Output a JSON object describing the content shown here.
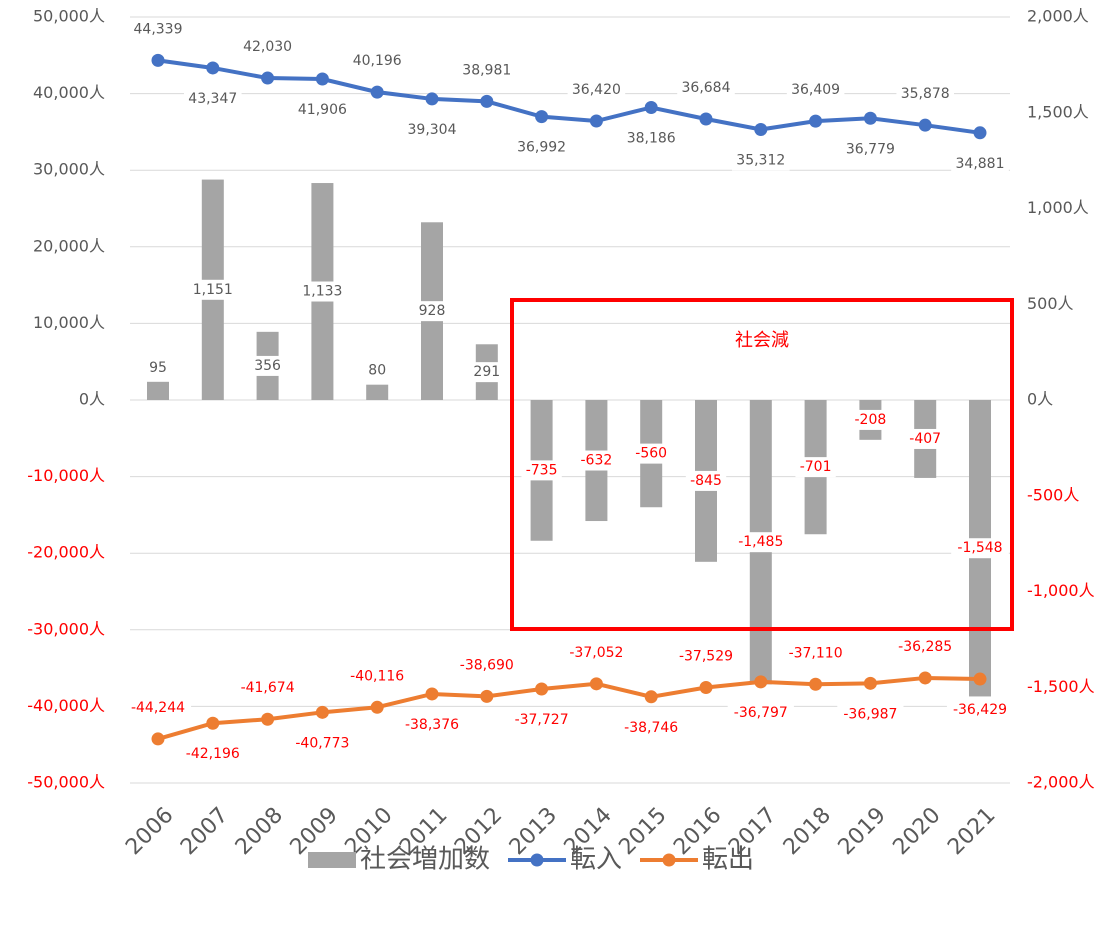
{
  "chart_data": {
    "type": "combo",
    "categories": [
      "2006",
      "2007",
      "2008",
      "2009",
      "2010",
      "2011",
      "2012",
      "2013",
      "2014",
      "2015",
      "2016",
      "2017",
      "2018",
      "2019",
      "2020",
      "2021"
    ],
    "ylim": [
      -50000,
      50000
    ],
    "yticks": [
      {
        "value": 50000,
        "label": "50,000人"
      },
      {
        "value": 40000,
        "label": "40,000人"
      },
      {
        "value": 30000,
        "label": "30,000人"
      },
      {
        "value": 20000,
        "label": "20,000人"
      },
      {
        "value": 10000,
        "label": "10,000人"
      },
      {
        "value": 0,
        "label": "0人"
      },
      {
        "value": -10000,
        "label": "-10,000人"
      },
      {
        "value": -20000,
        "label": "-20,000人"
      },
      {
        "value": -30000,
        "label": "-30,000人"
      },
      {
        "value": -40000,
        "label": "-40,000人"
      },
      {
        "value": -50000,
        "label": "-50,000人"
      }
    ],
    "y2lim": [
      -2000,
      2000
    ],
    "y2ticks": [
      {
        "value": 2000,
        "label": "2,000人"
      },
      {
        "value": 1500,
        "label": "1,500人"
      },
      {
        "value": 1000,
        "label": "1,000人"
      },
      {
        "value": 500,
        "label": "500人"
      },
      {
        "value": 0,
        "label": "0人"
      },
      {
        "value": -500,
        "label": "-500人"
      },
      {
        "value": -1000,
        "label": "-1,000人"
      },
      {
        "value": -1500,
        "label": "-1,500人"
      },
      {
        "value": -2000,
        "label": "-2,000人"
      }
    ],
    "grid": true,
    "negative_color": "#ff0000",
    "annotation": "社会減",
    "annotation_color": "#ff0000",
    "series": [
      {
        "name": "社会増加数",
        "type": "bar",
        "axis": "y2",
        "color": "#a5a5a5",
        "values": [
          95,
          1151,
          356,
          1133,
          80,
          928,
          291,
          -735,
          -632,
          -560,
          -845,
          -1485,
          -701,
          -208,
          -407,
          -1548
        ],
        "value_labels": [
          "95",
          "1,151",
          "356",
          "1,133",
          "80",
          "928",
          "291",
          "-735",
          "-632",
          "-560",
          "-845",
          "-1,485",
          "-701",
          "-208",
          "-407",
          "-1,548"
        ]
      },
      {
        "name": "転入",
        "type": "line",
        "color": "#4472c4",
        "values": [
          44339,
          43347,
          42030,
          41906,
          40196,
          39304,
          38981,
          36992,
          36420,
          38186,
          36684,
          35312,
          36409,
          36779,
          35878,
          34881
        ],
        "value_labels": [
          "44,339",
          "43,347",
          "42,030",
          "41,906",
          "40,196",
          "39,304",
          "38,981",
          "36,992",
          "36,420",
          "38,186",
          "36,684",
          "35,312",
          "36,409",
          "36,779",
          "35,878",
          "34,881"
        ]
      },
      {
        "name": "転出",
        "type": "line",
        "color": "#ed7d31",
        "values": [
          -44244,
          -42196,
          -41674,
          -40773,
          -40116,
          -38376,
          -38690,
          -37727,
          -37052,
          -38746,
          -37529,
          -36797,
          -37110,
          -36987,
          -36285,
          -36429
        ],
        "value_labels": [
          "-44,244",
          "-42,196",
          "-41,674",
          "-40,773",
          "-40,116",
          "-38,376",
          "-38,690",
          "-37,727",
          "-37,052",
          "-38,746",
          "-37,529",
          "-36,797",
          "-37,110",
          "-36,987",
          "-36,285",
          "-36,429"
        ]
      }
    ]
  }
}
